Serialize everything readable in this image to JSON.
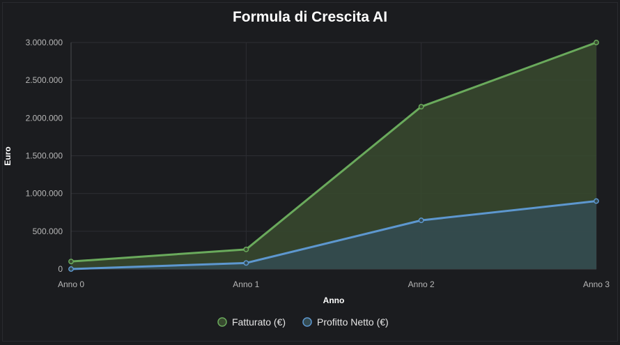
{
  "chart_data": {
    "type": "area",
    "title": "Formula di Crescita AI",
    "xlabel": "Anno",
    "ylabel": "Euro",
    "categories": [
      "Anno 0",
      "Anno 1",
      "Anno 2",
      "Anno 3"
    ],
    "ylim": [
      0,
      3000000
    ],
    "yticks": [
      0,
      500000,
      1000000,
      1500000,
      2000000,
      2500000,
      3000000
    ],
    "ytick_labels": [
      "0",
      "500.000",
      "1.000.000",
      "1.500.000",
      "2.000.000",
      "2.500.000",
      "3.000.000"
    ],
    "grid": true,
    "legend_position": "bottom",
    "series": [
      {
        "name": "Fatturato (€)",
        "values": [
          100000,
          260000,
          2150000,
          3000000
        ],
        "color": "#6aaa5c",
        "fill": "#384a2f"
      },
      {
        "name": "Profitto Netto (€)",
        "values": [
          0,
          80000,
          645000,
          900000
        ],
        "color": "#5d97cf",
        "fill": "#344b52"
      }
    ]
  }
}
